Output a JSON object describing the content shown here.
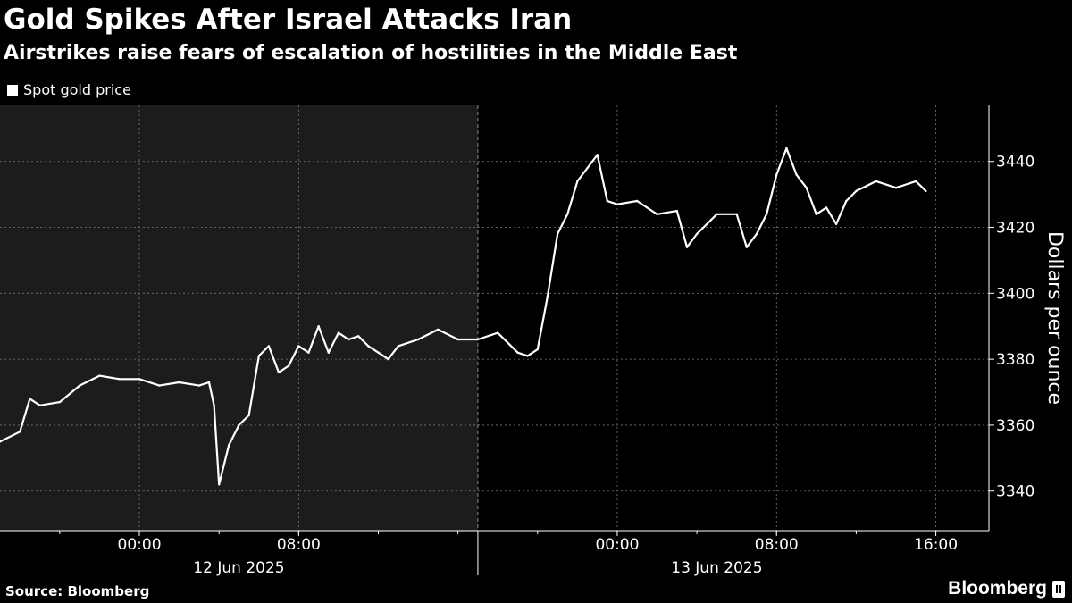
{
  "header": {
    "title": "Gold Spikes After Israel Attacks Iran",
    "subtitle": "Airstrikes raise fears of escalation of hostilities in the Middle East"
  },
  "legend": {
    "label": "Spot gold price"
  },
  "footer": {
    "source": "Source: Bloomberg",
    "brand": "Bloomberg"
  },
  "colors": {
    "background": "#000000",
    "shaded_region": "#1c1c1c",
    "line": "#ffffff",
    "grid": "#777777"
  },
  "chart_data": {
    "type": "line",
    "title": "Gold Spikes After Israel Attacks Iran",
    "subtitle": "Airstrikes raise fears of escalation of hostilities in the Middle East",
    "ylabel": "Dollars per ounce",
    "ylim": [
      3328,
      3457
    ],
    "yticks": [
      3340,
      3360,
      3380,
      3400,
      3420,
      3440
    ],
    "xlim": [
      "2025-06-11 17:00",
      "2025-06-13 18:40"
    ],
    "xticks": [
      {
        "time": "2025-06-12 00:00",
        "label": "00:00"
      },
      {
        "time": "2025-06-12 08:00",
        "label": "08:00"
      },
      {
        "time": "2025-06-13 00:00",
        "label": "00:00"
      },
      {
        "time": "2025-06-13 08:00",
        "label": "08:00"
      },
      {
        "time": "2025-06-13 16:00",
        "label": "16:00"
      }
    ],
    "day_labels": [
      {
        "time": "2025-06-12 05:00",
        "label": "12 Jun 2025"
      },
      {
        "time": "2025-06-13 05:00",
        "label": "13 Jun 2025"
      }
    ],
    "shaded_range": [
      "2025-06-11 17:00",
      "2025-06-12 17:00"
    ],
    "grid": true,
    "legend_position": "top-left",
    "series": [
      {
        "name": "Spot gold price",
        "x": [
          "2025-06-11 17:00",
          "2025-06-11 18:00",
          "2025-06-11 18:30",
          "2025-06-11 19:00",
          "2025-06-11 20:00",
          "2025-06-11 21:00",
          "2025-06-11 22:00",
          "2025-06-11 23:00",
          "2025-06-12 00:00",
          "2025-06-12 01:00",
          "2025-06-12 02:00",
          "2025-06-12 03:00",
          "2025-06-12 03:30",
          "2025-06-12 03:45",
          "2025-06-12 04:00",
          "2025-06-12 04:30",
          "2025-06-12 05:00",
          "2025-06-12 05:30",
          "2025-06-12 06:00",
          "2025-06-12 06:30",
          "2025-06-12 07:00",
          "2025-06-12 07:30",
          "2025-06-12 08:00",
          "2025-06-12 08:30",
          "2025-06-12 09:00",
          "2025-06-12 09:30",
          "2025-06-12 10:00",
          "2025-06-12 10:30",
          "2025-06-12 11:00",
          "2025-06-12 11:30",
          "2025-06-12 12:00",
          "2025-06-12 12:30",
          "2025-06-12 13:00",
          "2025-06-12 14:00",
          "2025-06-12 15:00",
          "2025-06-12 16:00",
          "2025-06-12 17:00",
          "2025-06-12 18:00",
          "2025-06-12 19:00",
          "2025-06-12 19:30",
          "2025-06-12 20:00",
          "2025-06-12 20:30",
          "2025-06-12 21:00",
          "2025-06-12 21:30",
          "2025-06-12 22:00",
          "2025-06-12 22:30",
          "2025-06-12 23:00",
          "2025-06-12 23:30",
          "2025-06-13 00:00",
          "2025-06-13 01:00",
          "2025-06-13 02:00",
          "2025-06-13 03:00",
          "2025-06-13 03:30",
          "2025-06-13 04:00",
          "2025-06-13 05:00",
          "2025-06-13 06:00",
          "2025-06-13 06:30",
          "2025-06-13 07:00",
          "2025-06-13 07:30",
          "2025-06-13 08:00",
          "2025-06-13 08:30",
          "2025-06-13 09:00",
          "2025-06-13 09:30",
          "2025-06-13 10:00",
          "2025-06-13 10:30",
          "2025-06-13 11:00",
          "2025-06-13 11:30",
          "2025-06-13 12:00",
          "2025-06-13 13:00",
          "2025-06-13 14:00",
          "2025-06-13 15:00",
          "2025-06-13 15:30"
        ],
        "y": [
          3355,
          3358,
          3368,
          3366,
          3367,
          3372,
          3375,
          3374,
          3374,
          3372,
          3373,
          3372,
          3373,
          3366,
          3342,
          3354,
          3360,
          3363,
          3381,
          3384,
          3376,
          3378,
          3384,
          3382,
          3390,
          3382,
          3388,
          3386,
          3387,
          3384,
          3382,
          3380,
          3384,
          3386,
          3389,
          3386,
          3386,
          3388,
          3382,
          3381,
          3383,
          3399,
          3418,
          3424,
          3434,
          3438,
          3442,
          3428,
          3427,
          3428,
          3424,
          3425,
          3414,
          3418,
          3424,
          3424,
          3414,
          3418,
          3424,
          3436,
          3444,
          3436,
          3432,
          3424,
          3426,
          3421,
          3428,
          3431,
          3434,
          3432,
          3434,
          3431
        ]
      }
    ]
  }
}
